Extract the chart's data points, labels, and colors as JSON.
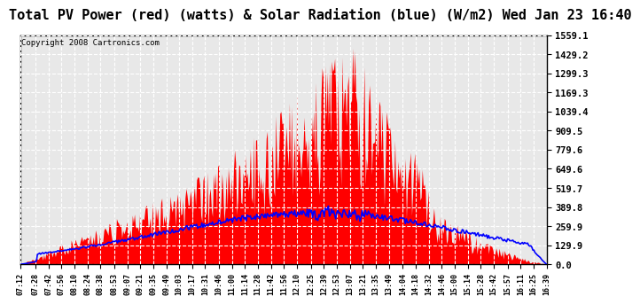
{
  "title": "Total PV Power (red) (watts) & Solar Radiation (blue) (W/m2) Wed Jan 23 16:40",
  "copyright": "Copyright 2008 Cartronics.com",
  "yticks": [
    0.0,
    129.9,
    259.9,
    389.8,
    519.7,
    649.6,
    779.6,
    909.5,
    1039.4,
    1169.3,
    1299.3,
    1429.2,
    1559.1
  ],
  "ymax": 1559.1,
  "background_color": "#ffffff",
  "plot_bg_color": "#e8e8e8",
  "fill_color": "#ff0000",
  "line_color": "#0000ff",
  "grid_color": "#ffffff",
  "title_fontsize": 11,
  "xtick_labels": [
    "07:12",
    "07:28",
    "07:42",
    "07:56",
    "08:10",
    "08:24",
    "08:38",
    "08:53",
    "09:07",
    "09:21",
    "09:35",
    "09:49",
    "10:03",
    "10:17",
    "10:31",
    "10:46",
    "11:00",
    "11:14",
    "11:28",
    "11:42",
    "11:56",
    "12:10",
    "12:25",
    "12:39",
    "12:53",
    "13:07",
    "13:21",
    "13:35",
    "13:49",
    "14:04",
    "14:18",
    "14:32",
    "14:46",
    "15:00",
    "15:14",
    "15:28",
    "15:42",
    "15:57",
    "16:11",
    "16:25",
    "16:39"
  ]
}
